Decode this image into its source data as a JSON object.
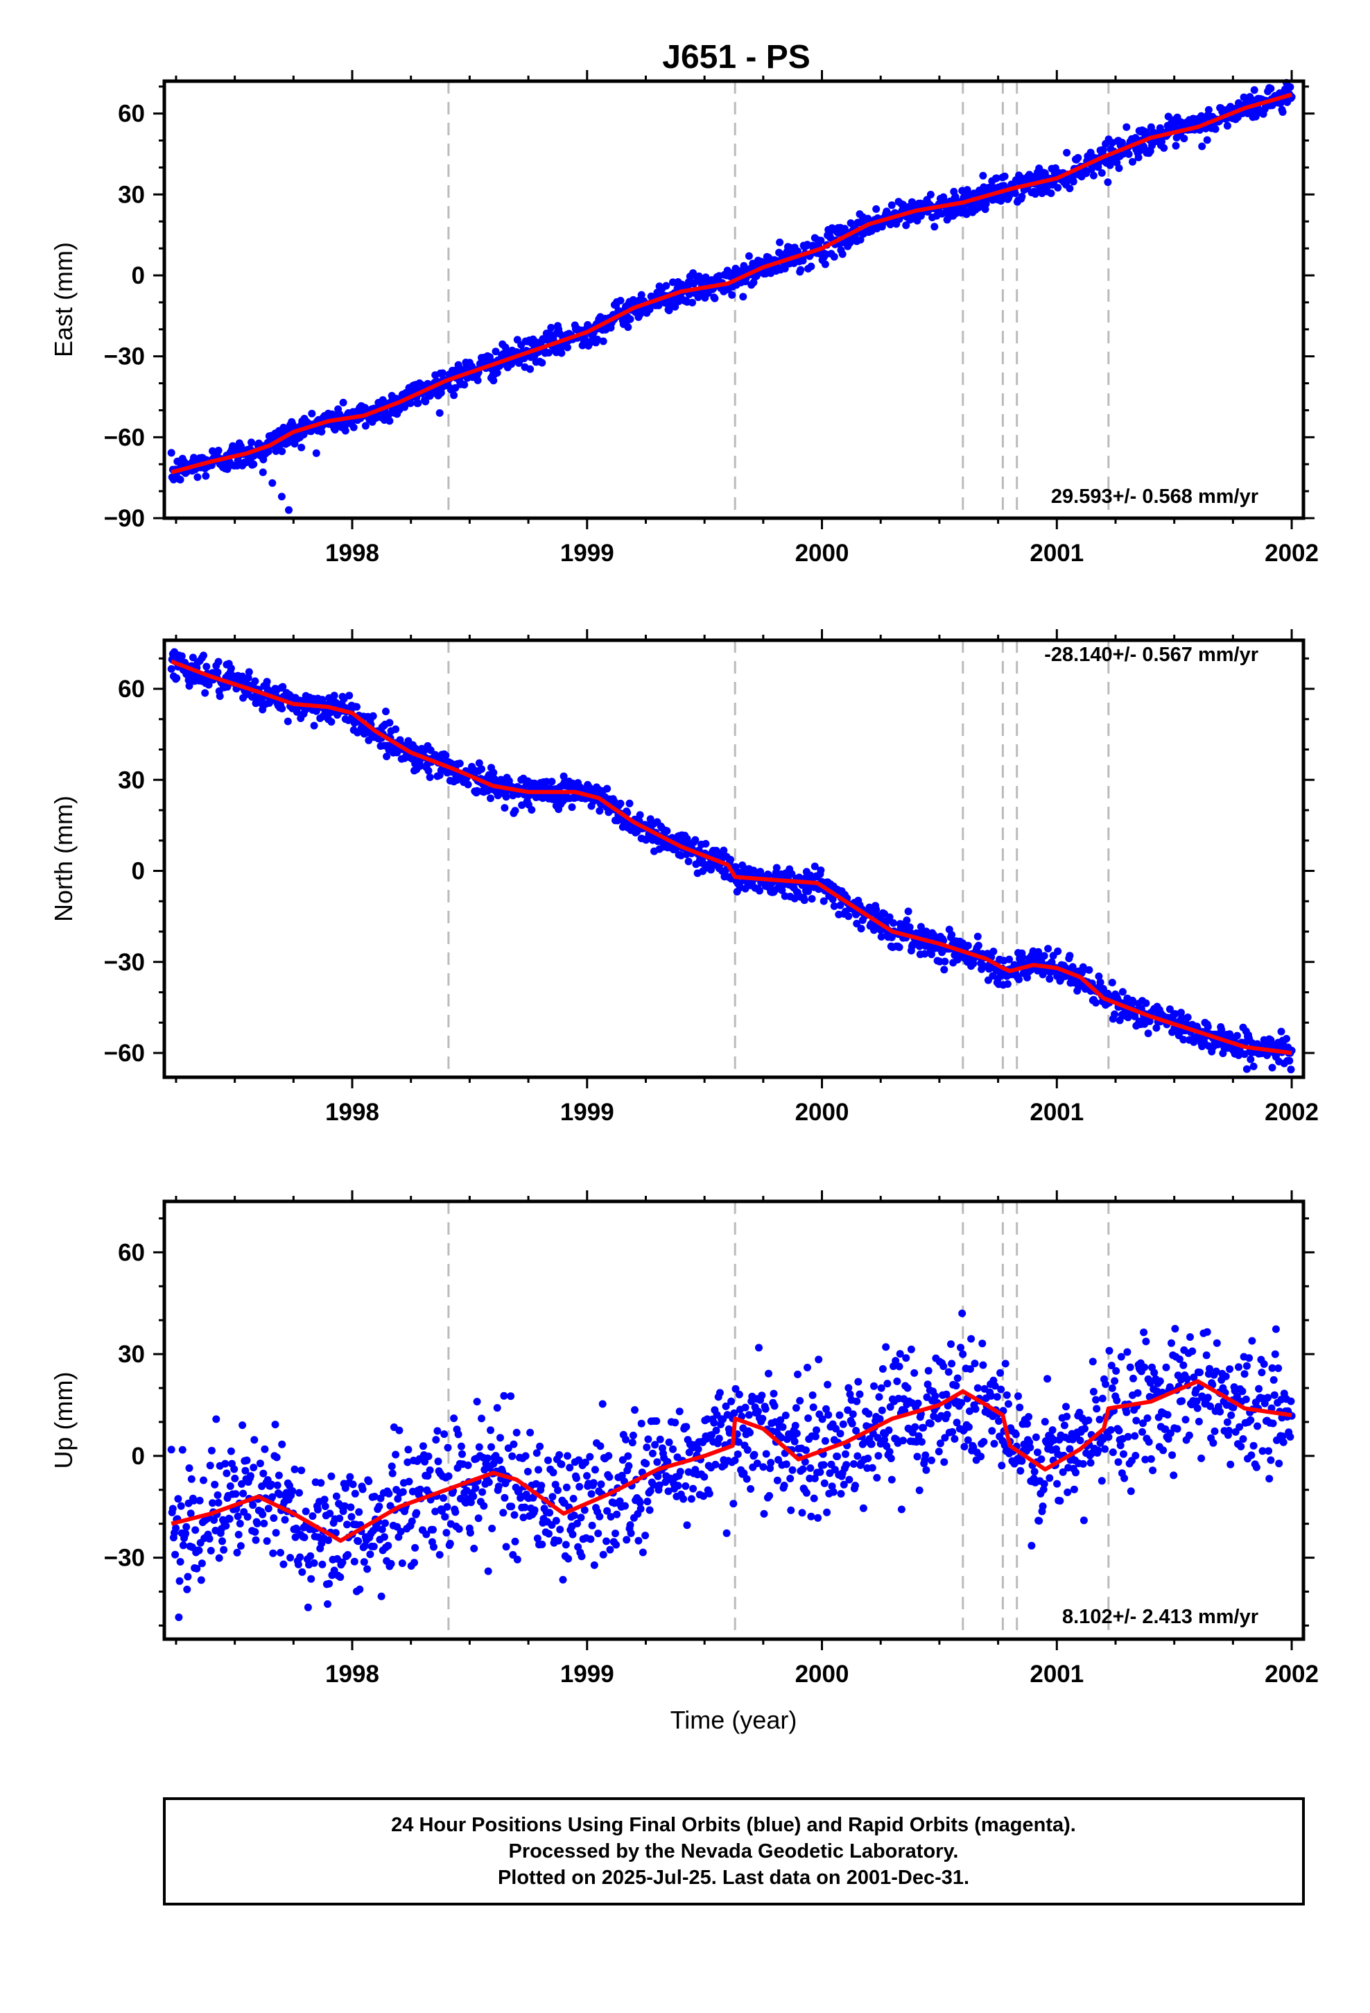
{
  "title": "J651 - PS",
  "xlabel": "Time (year)",
  "x_ticks": [
    1998,
    1999,
    2000,
    2001,
    2002
  ],
  "x_range": [
    1997.2,
    2002.05
  ],
  "event_lines": [
    1998.41,
    1999.63,
    2000.6,
    2000.77,
    2000.83,
    2001.22
  ],
  "colors": {
    "data": "#0000ff",
    "model": "#ff0000",
    "event": "#bbbbbb",
    "frame": "#000000"
  },
  "panels": [
    {
      "key": "east",
      "ylabel": "East (mm)",
      "ylim": [
        -90,
        72
      ],
      "yticks": [
        -90,
        -60,
        -30,
        0,
        30,
        60
      ],
      "rate": "29.593+/- 0.568 mm/yr"
    },
    {
      "key": "north",
      "ylabel": "North (mm)",
      "ylim": [
        -68,
        76
      ],
      "yticks": [
        -60,
        -30,
        0,
        30,
        60
      ],
      "rate": "-28.140+/- 0.567 mm/yr"
    },
    {
      "key": "up",
      "ylabel": "Up (mm)",
      "ylim": [
        -54,
        75
      ],
      "yticks": [
        -30,
        0,
        30,
        60
      ],
      "rate": "8.102+/- 2.413 mm/yr"
    }
  ],
  "caption": {
    "line1": "24 Hour Positions Using Final Orbits (blue) and Rapid Orbits (magenta).",
    "line2": "Processed by the Nevada Geodetic Laboratory.",
    "line3": "Plotted on 2025-Jul-25. Last data on 2001-Dec-31."
  },
  "chart_data": [
    {
      "type": "scatter",
      "title": "J651 - PS",
      "ylabel": "East (mm)",
      "xlabel": "",
      "xlim": [
        1997.2,
        2002.05
      ],
      "ylim": [
        -90,
        72
      ],
      "grid": false,
      "rate_label": "29.593+/- 0.568 mm/yr",
      "series": [
        {
          "values_model": true,
          "x": [
            1997.23,
            1997.4,
            1997.55,
            1997.65,
            1997.75,
            1997.9,
            1998.05,
            1998.2,
            1998.4,
            1998.6,
            1998.8,
            1999.0,
            1999.2,
            1999.4,
            1999.6,
            1999.75,
            2000.0,
            2000.2,
            2000.4,
            2000.6,
            2000.8,
            2001.0,
            2001.2,
            2001.4,
            2001.6,
            2001.8,
            2002.0
          ],
          "y": [
            -73,
            -69,
            -66,
            -63,
            -58,
            -54,
            -52,
            -47,
            -39,
            -33,
            -27,
            -21,
            -12,
            -6,
            -3,
            3,
            10,
            19,
            24,
            27,
            32,
            36,
            44,
            51,
            55,
            62,
            67
          ]
        }
      ],
      "scatter_sigma": 2.6,
      "anomalies": [
        {
          "x": [
            1997.58,
            1997.62,
            1997.66,
            1997.7,
            1997.73
          ],
          "y": [
            -70,
            -73,
            -77,
            -82,
            -87
          ]
        }
      ]
    },
    {
      "type": "scatter",
      "ylabel": "North (mm)",
      "xlabel": "",
      "xlim": [
        1997.2,
        2002.05
      ],
      "ylim": [
        -68,
        76
      ],
      "grid": false,
      "rate_label": "-28.140+/- 0.567 mm/yr",
      "series": [
        {
          "values_model": true,
          "x": [
            1997.23,
            1997.4,
            1997.6,
            1997.75,
            1997.9,
            1998.0,
            1998.1,
            1998.25,
            1998.45,
            1998.6,
            1998.75,
            1998.95,
            1999.05,
            1999.2,
            1999.4,
            1999.6,
            1999.63,
            1999.8,
            1999.98,
            2000.1,
            2000.3,
            2000.5,
            2000.7,
            2000.77,
            2000.8,
            2000.9,
            2001.0,
            2001.1,
            2001.2,
            2001.4,
            2001.6,
            2001.8,
            2002.0
          ],
          "y": [
            69,
            64,
            59,
            55,
            54,
            52,
            46,
            39,
            33,
            28,
            26,
            26,
            24,
            16,
            8,
            2,
            -2,
            -3,
            -4,
            -10,
            -20,
            -24,
            -29,
            -32,
            -33,
            -31,
            -32,
            -35,
            -42,
            -48,
            -53,
            -58,
            -60
          ]
        }
      ],
      "scatter_sigma": 2.5
    },
    {
      "type": "scatter",
      "ylabel": "Up (mm)",
      "xlabel": "Time (year)",
      "xlim": [
        1997.2,
        2002.05
      ],
      "ylim": [
        -54,
        75
      ],
      "grid": false,
      "rate_label": "8.102+/- 2.413 mm/yr",
      "series": [
        {
          "values_model": true,
          "x": [
            1997.23,
            1997.4,
            1997.6,
            1997.75,
            1997.95,
            1998.2,
            1998.4,
            1998.6,
            1998.7,
            1998.9,
            1999.1,
            1999.3,
            1999.5,
            1999.62,
            1999.63,
            1999.75,
            1999.9,
            2000.1,
            2000.3,
            2000.5,
            2000.6,
            2000.7,
            2000.77,
            2000.8,
            2000.95,
            2001.1,
            2001.2,
            2001.22,
            2001.4,
            2001.6,
            2001.8,
            2002.0
          ],
          "y": [
            -20,
            -17,
            -12,
            -17,
            -25,
            -15,
            -10,
            -5,
            -7,
            -17,
            -11,
            -4,
            0,
            3,
            11,
            8,
            -1,
            4,
            11,
            15,
            19,
            15,
            12,
            3,
            -4,
            2,
            8,
            14,
            16,
            22,
            14,
            12
          ]
        }
      ],
      "scatter_sigma": 9.5
    }
  ]
}
